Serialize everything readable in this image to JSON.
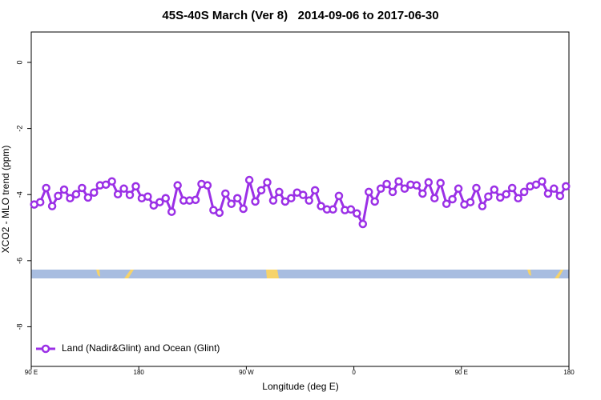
{
  "chart_data": {
    "type": "line",
    "title": "45S-40S March (Ver 8)   2014-09-06 to 2017-06-30",
    "xlabel": "Longitude (deg E)",
    "ylabel": "XCO2 - MLO trend (ppm)",
    "xlim": [
      90,
      540
    ],
    "ylim": [
      -9.2,
      0.92
    ],
    "xticks": [
      {
        "value": 90,
        "label": "90 E"
      },
      180,
      {
        "value": 270,
        "label": "90 W"
      },
      {
        "value": 360,
        "label": "0"
      },
      {
        "value": 450,
        "label": "90 E"
      },
      {
        "value": 540,
        "label": "180"
      }
    ],
    "yticks": [
      0,
      -2,
      -4,
      -6,
      -8
    ],
    "legend": "bottom-left",
    "x": [
      92.5,
      97.5,
      102.5,
      107.5,
      112.5,
      117.5,
      122.5,
      127.5,
      132.5,
      137.5,
      142.5,
      147.5,
      152.5,
      157.5,
      162.5,
      167.5,
      172.5,
      177.5,
      182.5,
      187.5,
      192.5,
      197.5,
      202.5,
      207.5,
      212.5,
      217.5,
      222.5,
      227.5,
      232.5,
      237.5,
      242.5,
      247.5,
      252.5,
      257.5,
      262.5,
      267.5,
      272.5,
      277.5,
      282.5,
      287.5,
      292.5,
      297.5,
      302.5,
      307.5,
      312.5,
      317.5,
      322.5,
      327.5,
      332.5,
      337.5,
      342.5,
      347.5,
      352.5,
      357.5,
      362.5,
      367.5,
      372.5,
      377.5,
      382.5,
      387.5,
      392.5,
      397.5,
      402.5,
      407.5,
      412.5,
      417.5,
      422.5,
      427.5,
      432.5,
      437.5,
      442.5,
      447.5,
      452.5,
      457.5,
      462.5,
      467.5,
      472.5,
      477.5,
      482.5,
      487.5,
      492.5,
      497.5,
      502.5,
      507.5,
      512.5,
      517.5,
      522.5,
      527.5,
      532.5,
      537.5
    ],
    "series": [
      {
        "name": "Land (Nadir&Glint) and Ocean (Glint)",
        "color": "#9b30e6",
        "values": [
          -4.3,
          -4.23,
          -3.8,
          -4.35,
          -4.04,
          -3.85,
          -4.11,
          -3.99,
          -3.8,
          -4.09,
          -3.94,
          -3.72,
          -3.7,
          -3.6,
          -3.99,
          -3.82,
          -4.01,
          -3.75,
          -4.11,
          -4.06,
          -4.33,
          -4.23,
          -4.11,
          -4.52,
          -3.72,
          -4.18,
          -4.18,
          -4.16,
          -3.68,
          -3.72,
          -4.47,
          -4.55,
          -3.97,
          -4.28,
          -4.11,
          -4.43,
          -3.56,
          -4.21,
          -3.87,
          -3.63,
          -4.18,
          -3.92,
          -4.21,
          -4.11,
          -3.94,
          -4.01,
          -4.18,
          -3.87,
          -4.35,
          -4.45,
          -4.45,
          -4.04,
          -4.47,
          -4.45,
          -4.57,
          -4.89,
          -3.92,
          -4.21,
          -3.82,
          -3.68,
          -3.92,
          -3.6,
          -3.82,
          -3.7,
          -3.72,
          -3.97,
          -3.63,
          -4.11,
          -3.65,
          -4.28,
          -4.14,
          -3.82,
          -4.3,
          -4.23,
          -3.8,
          -4.35,
          -4.06,
          -3.85,
          -4.09,
          -3.99,
          -3.8,
          -4.11,
          -3.92,
          -3.75,
          -3.7,
          -3.6,
          -3.97,
          -3.82,
          -4.04,
          -3.75
        ]
      }
    ]
  }
}
